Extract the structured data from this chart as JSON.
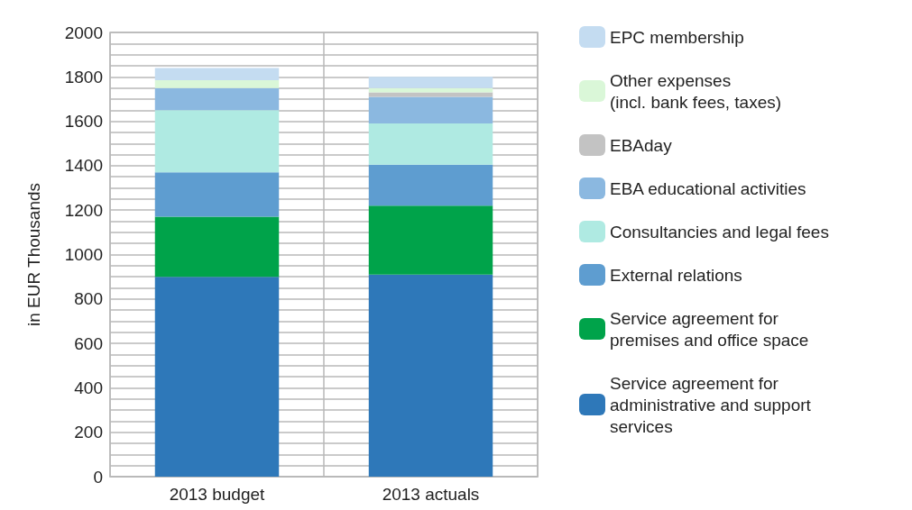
{
  "chart_data": {
    "type": "bar",
    "stacked": true,
    "ylabel": "in EUR Thousands",
    "categories": [
      "2013 budget",
      "2013 actuals"
    ],
    "series": [
      {
        "name": "Service agreement for\nadministrative and support\nservices",
        "color": "#2e78b9",
        "values": [
          900,
          910
        ]
      },
      {
        "name": "Service agreement for\npremises and office space",
        "color": "#00a34a",
        "values": [
          270,
          310
        ]
      },
      {
        "name": "External relations",
        "color": "#5e9dd0",
        "values": [
          200,
          185
        ]
      },
      {
        "name": "Consultancies and legal fees",
        "color": "#afeae2",
        "values": [
          280,
          185
        ]
      },
      {
        "name": "EBA educational activities",
        "color": "#8bb8e0",
        "values": [
          100,
          120
        ]
      },
      {
        "name": "EBAday",
        "color": "#c3c3c3",
        "values": [
          0,
          20
        ]
      },
      {
        "name": "Other expenses\n(incl. bank fees, taxes)",
        "color": "#daf7d8",
        "values": [
          35,
          20
        ]
      },
      {
        "name": "EPC membership",
        "color": "#c4dcf1",
        "values": [
          55,
          50
        ]
      }
    ],
    "ylim": [
      0,
      2000
    ],
    "yticks": [
      0,
      {
        "value": 50,
        "label": null
      },
      {
        "value": 100,
        "label": null
      },
      {
        "value": 150,
        "label": null
      },
      200,
      {
        "value": 250,
        "label": null
      },
      {
        "value": 300,
        "label": null
      },
      {
        "value": 350,
        "label": null
      },
      400,
      {
        "value": 450,
        "label": null
      },
      {
        "value": 500,
        "label": null
      },
      {
        "value": 550,
        "label": null
      },
      600,
      {
        "value": 650,
        "label": null
      },
      {
        "value": 700,
        "label": null
      },
      {
        "value": 750,
        "label": null
      },
      800,
      {
        "value": 850,
        "label": null
      },
      {
        "value": 900,
        "label": null
      },
      {
        "value": 950,
        "label": null
      },
      1000,
      {
        "value": 1050,
        "label": null
      },
      {
        "value": 1100,
        "label": null
      },
      {
        "value": 1150,
        "label": null
      },
      1200,
      {
        "value": 1250,
        "label": null
      },
      {
        "value": 1300,
        "label": null
      },
      {
        "value": 1350,
        "label": null
      },
      1400,
      {
        "value": 1450,
        "label": null
      },
      {
        "value": 1500,
        "label": null
      },
      {
        "value": 1550,
        "label": null
      },
      1600,
      {
        "value": 1650,
        "label": null
      },
      {
        "value": 1700,
        "label": null
      },
      {
        "value": 1750,
        "label": null
      },
      1800,
      {
        "value": 1850,
        "label": null
      },
      {
        "value": 1900,
        "label": null
      },
      {
        "value": 1950,
        "label": null
      },
      2000
    ],
    "grid": true,
    "legend": "right"
  }
}
